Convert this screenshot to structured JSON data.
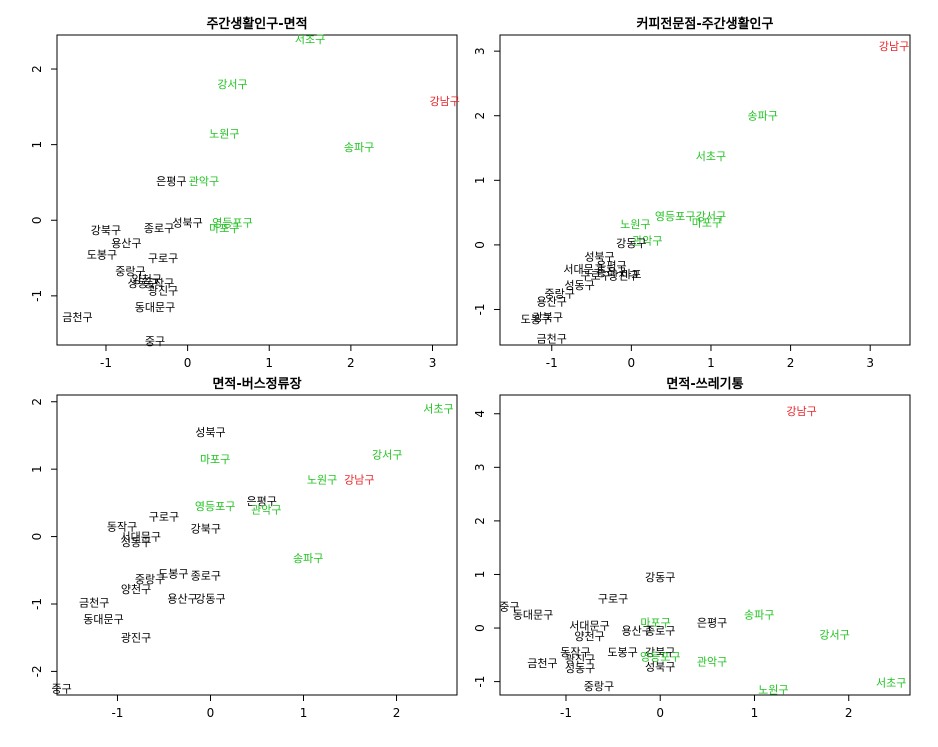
{
  "colors": {
    "black": "#000000",
    "green": "#22c322",
    "red": "#e8262b",
    "axis": "#000000"
  },
  "chart_data": [
    {
      "type": "scatter",
      "title": "주간생활인구-면적",
      "xlim": [
        -1.6,
        3.3
      ],
      "ylim": [
        -1.65,
        2.45
      ],
      "xticks": [
        -1,
        0,
        1,
        2,
        3
      ],
      "yticks": [
        -1,
        0,
        1,
        2
      ],
      "points": [
        {
          "label": "서초구",
          "x": 1.5,
          "y": 2.4,
          "c": "green"
        },
        {
          "label": "강서구",
          "x": 0.55,
          "y": 1.8,
          "c": "green"
        },
        {
          "label": "강남구",
          "x": 3.15,
          "y": 1.58,
          "c": "red"
        },
        {
          "label": "노원구",
          "x": 0.45,
          "y": 1.15,
          "c": "green"
        },
        {
          "label": "송파구",
          "x": 2.1,
          "y": 0.97,
          "c": "green"
        },
        {
          "label": "은평구",
          "x": -0.2,
          "y": 0.52,
          "c": "black"
        },
        {
          "label": "관악구",
          "x": 0.2,
          "y": 0.52,
          "c": "green"
        },
        {
          "label": "성북구",
          "x": 0.0,
          "y": -0.03,
          "c": "black"
        },
        {
          "label": "영등포구",
          "x": 0.55,
          "y": -0.03,
          "c": "green"
        },
        {
          "label": "마포구",
          "x": 0.45,
          "y": -0.1,
          "c": "green"
        },
        {
          "label": "종로구",
          "x": -0.35,
          "y": -0.1,
          "c": "black"
        },
        {
          "label": "강북구",
          "x": -1.0,
          "y": -0.13,
          "c": "black"
        },
        {
          "label": "용산구",
          "x": -0.75,
          "y": -0.3,
          "c": "black"
        },
        {
          "label": "도봉구",
          "x": -1.05,
          "y": -0.45,
          "c": "black"
        },
        {
          "label": "구로구",
          "x": -0.3,
          "y": -0.5,
          "c": "black"
        },
        {
          "label": "중랑구",
          "x": -0.7,
          "y": -0.67,
          "c": "black"
        },
        {
          "label": "양천구",
          "x": -0.5,
          "y": -0.78,
          "c": "black"
        },
        {
          "label": "성동구",
          "x": -0.55,
          "y": -0.83,
          "c": "black"
        },
        {
          "label": "동작구",
          "x": -0.35,
          "y": -0.83,
          "c": "black"
        },
        {
          "label": "광진구",
          "x": -0.3,
          "y": -0.93,
          "c": "black"
        },
        {
          "label": "금천구",
          "x": -1.35,
          "y": -1.28,
          "c": "black"
        },
        {
          "label": "동대문구",
          "x": -0.4,
          "y": -1.15,
          "c": "black"
        },
        {
          "label": "중구",
          "x": -0.4,
          "y": -1.6,
          "c": "black"
        }
      ]
    },
    {
      "type": "scatter",
      "title": "커피전문점-주간생활인구",
      "xlim": [
        -1.65,
        3.5
      ],
      "ylim": [
        -1.55,
        3.25
      ],
      "xticks": [
        -1,
        0,
        1,
        2,
        3
      ],
      "yticks": [
        -1,
        0,
        1,
        2,
        3
      ],
      "points": [
        {
          "label": "강남구",
          "x": 3.3,
          "y": 3.08,
          "c": "red"
        },
        {
          "label": "송파구",
          "x": 1.65,
          "y": 2.0,
          "c": "green"
        },
        {
          "label": "서초구",
          "x": 1.0,
          "y": 1.38,
          "c": "green"
        },
        {
          "label": "영등포구",
          "x": 0.55,
          "y": 0.45,
          "c": "green"
        },
        {
          "label": "강서구",
          "x": 1.0,
          "y": 0.45,
          "c": "green"
        },
        {
          "label": "마포구",
          "x": 0.95,
          "y": 0.35,
          "c": "green"
        },
        {
          "label": "노원구",
          "x": 0.05,
          "y": 0.32,
          "c": "green"
        },
        {
          "label": "관악구",
          "x": 0.2,
          "y": 0.07,
          "c": "green"
        },
        {
          "label": "강동구",
          "x": 0.0,
          "y": 0.03,
          "c": "black"
        },
        {
          "label": "성북구",
          "x": -0.4,
          "y": -0.18,
          "c": "black"
        },
        {
          "label": "은평구",
          "x": -0.25,
          "y": -0.32,
          "c": "black"
        },
        {
          "label": "서대문구",
          "x": -0.6,
          "y": -0.37,
          "c": "black"
        },
        {
          "label": "동작구",
          "x": -0.25,
          "y": -0.42,
          "c": "black"
        },
        {
          "label": "구로구",
          "x": -0.45,
          "y": -0.47,
          "c": "black"
        },
        {
          "label": "광진구",
          "x": -0.1,
          "y": -0.47,
          "c": "black"
        },
        {
          "label": "마포",
          "x": 0.0,
          "y": -0.45,
          "c": "black"
        },
        {
          "label": "성동구",
          "x": -0.65,
          "y": -0.62,
          "c": "black"
        },
        {
          "label": "중랑구",
          "x": -0.9,
          "y": -0.75,
          "c": "black"
        },
        {
          "label": "용산구",
          "x": -1.0,
          "y": -0.88,
          "c": "black"
        },
        {
          "label": "강북구",
          "x": -1.05,
          "y": -1.12,
          "c": "black"
        },
        {
          "label": "도봉구",
          "x": -1.2,
          "y": -1.15,
          "c": "black"
        },
        {
          "label": "금천구",
          "x": -1.0,
          "y": -1.45,
          "c": "black"
        }
      ]
    },
    {
      "type": "scatter",
      "title": "면적-버스정류장",
      "xlim": [
        -1.65,
        2.65
      ],
      "ylim": [
        -2.35,
        2.1
      ],
      "xticks": [
        -1,
        0,
        1,
        2
      ],
      "yticks": [
        -2,
        -1,
        0,
        1,
        2
      ],
      "points": [
        {
          "label": "서초구",
          "x": 2.45,
          "y": 1.9,
          "c": "green"
        },
        {
          "label": "성북구",
          "x": 0.0,
          "y": 1.55,
          "c": "black"
        },
        {
          "label": "강서구",
          "x": 1.9,
          "y": 1.22,
          "c": "green"
        },
        {
          "label": "마포구",
          "x": 0.05,
          "y": 1.15,
          "c": "green"
        },
        {
          "label": "노원구",
          "x": 1.2,
          "y": 0.85,
          "c": "green"
        },
        {
          "label": "강남구",
          "x": 1.6,
          "y": 0.85,
          "c": "red"
        },
        {
          "label": "은평구",
          "x": 0.55,
          "y": 0.53,
          "c": "black"
        },
        {
          "label": "영등포구",
          "x": 0.05,
          "y": 0.45,
          "c": "green"
        },
        {
          "label": "관악구",
          "x": 0.6,
          "y": 0.4,
          "c": "green"
        },
        {
          "label": "구로구",
          "x": -0.5,
          "y": 0.3,
          "c": "black"
        },
        {
          "label": "동작구",
          "x": -0.95,
          "y": 0.15,
          "c": "black"
        },
        {
          "label": "강북구",
          "x": -0.05,
          "y": 0.12,
          "c": "black"
        },
        {
          "label": "서대문구",
          "x": -0.75,
          "y": 0.0,
          "c": "black"
        },
        {
          "label": "성동구",
          "x": -0.8,
          "y": -0.08,
          "c": "black"
        },
        {
          "label": "송파구",
          "x": 1.05,
          "y": -0.32,
          "c": "green"
        },
        {
          "label": "도봉구",
          "x": -0.4,
          "y": -0.55,
          "c": "black"
        },
        {
          "label": "종로구",
          "x": -0.05,
          "y": -0.58,
          "c": "black"
        },
        {
          "label": "중랑구",
          "x": -0.65,
          "y": -0.63,
          "c": "black"
        },
        {
          "label": "양천구",
          "x": -0.8,
          "y": -0.78,
          "c": "black"
        },
        {
          "label": "용산구",
          "x": -0.3,
          "y": -0.92,
          "c": "black"
        },
        {
          "label": "강동구",
          "x": 0.0,
          "y": -0.92,
          "c": "black"
        },
        {
          "label": "금천구",
          "x": -1.25,
          "y": -0.98,
          "c": "black"
        },
        {
          "label": "동대문구",
          "x": -1.15,
          "y": -1.22,
          "c": "black"
        },
        {
          "label": "광진구",
          "x": -0.8,
          "y": -1.5,
          "c": "black"
        },
        {
          "label": "중구",
          "x": -1.6,
          "y": -2.25,
          "c": "black"
        }
      ]
    },
    {
      "type": "scatter",
      "title": "면적-쓰레기통",
      "xlim": [
        -1.7,
        2.65
      ],
      "ylim": [
        -1.25,
        4.35
      ],
      "xticks": [
        -1,
        0,
        1,
        2
      ],
      "yticks": [
        -1,
        0,
        1,
        2,
        3,
        4
      ],
      "points": [
        {
          "label": "강남구",
          "x": 1.5,
          "y": 4.05,
          "c": "red"
        },
        {
          "label": "강동구",
          "x": 0.0,
          "y": 0.95,
          "c": "black"
        },
        {
          "label": "중구",
          "x": -1.6,
          "y": 0.4,
          "c": "black"
        },
        {
          "label": "구로구",
          "x": -0.5,
          "y": 0.55,
          "c": "black"
        },
        {
          "label": "동대문구",
          "x": -1.35,
          "y": 0.25,
          "c": "black"
        },
        {
          "label": "송파구",
          "x": 1.05,
          "y": 0.25,
          "c": "green"
        },
        {
          "label": "은평구",
          "x": 0.55,
          "y": 0.1,
          "c": "black"
        },
        {
          "label": "마포구",
          "x": -0.05,
          "y": 0.1,
          "c": "green"
        },
        {
          "label": "서대문구",
          "x": -0.75,
          "y": 0.05,
          "c": "black"
        },
        {
          "label": "용산구",
          "x": -0.25,
          "y": -0.05,
          "c": "black"
        },
        {
          "label": "종로구",
          "x": 0.0,
          "y": -0.05,
          "c": "black"
        },
        {
          "label": "강서구",
          "x": 1.85,
          "y": -0.12,
          "c": "green"
        },
        {
          "label": "양천구",
          "x": -0.75,
          "y": -0.15,
          "c": "black"
        },
        {
          "label": "동작구",
          "x": -0.9,
          "y": -0.45,
          "c": "black"
        },
        {
          "label": "도봉구",
          "x": -0.4,
          "y": -0.45,
          "c": "black"
        },
        {
          "label": "강북구",
          "x": 0.0,
          "y": -0.45,
          "c": "black"
        },
        {
          "label": "영등포구",
          "x": 0.0,
          "y": -0.53,
          "c": "green"
        },
        {
          "label": "광진구",
          "x": -0.85,
          "y": -0.58,
          "c": "black"
        },
        {
          "label": "금천구",
          "x": -1.25,
          "y": -0.65,
          "c": "black"
        },
        {
          "label": "관악구",
          "x": 0.55,
          "y": -0.62,
          "c": "green"
        },
        {
          "label": "성북구",
          "x": 0.0,
          "y": -0.72,
          "c": "black"
        },
        {
          "label": "성동구",
          "x": -0.85,
          "y": -0.75,
          "c": "black"
        },
        {
          "label": "중랑구",
          "x": -0.65,
          "y": -1.08,
          "c": "black"
        },
        {
          "label": "노원구",
          "x": 1.2,
          "y": -1.15,
          "c": "green"
        },
        {
          "label": "서초구",
          "x": 2.45,
          "y": -1.02,
          "c": "green"
        }
      ]
    }
  ]
}
